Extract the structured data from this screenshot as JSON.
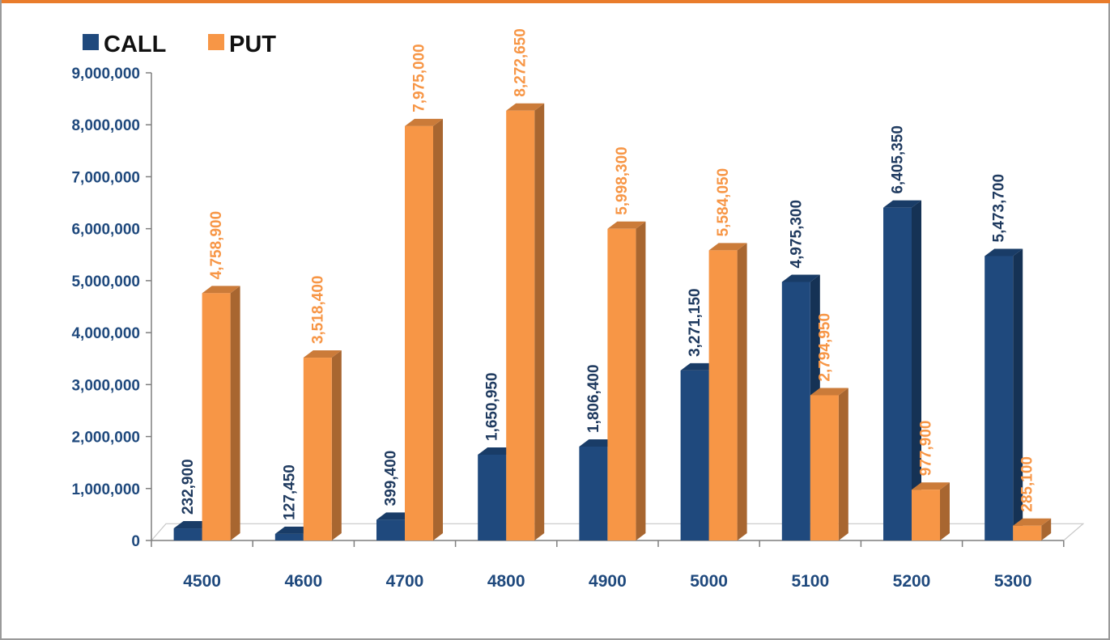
{
  "chart_data": {
    "type": "bar",
    "categories": [
      "4500",
      "4600",
      "4700",
      "4800",
      "4900",
      "5000",
      "5100",
      "5200",
      "5300"
    ],
    "series": [
      {
        "name": "CALL",
        "color": "#1f497d",
        "values": [
          232900,
          127450,
          399400,
          1650950,
          1806400,
          3271150,
          4975300,
          6405350,
          5473700
        ],
        "labels": [
          "232,900",
          "127,450",
          "399,400",
          "1,650,950",
          "1,806,400",
          "3,271,150",
          "4,975,300",
          "6,405,350",
          "5,473,700"
        ]
      },
      {
        "name": "PUT",
        "color": "#f79646",
        "values": [
          4758900,
          3518400,
          7975000,
          8272650,
          5998300,
          5584050,
          2794950,
          977900,
          285100
        ],
        "labels": [
          "4,758,900",
          "3,518,400",
          "7,975,000",
          "8,272,650",
          "5,998,300",
          "5,584,050",
          "2,794,950",
          "977,900",
          "285,100"
        ]
      }
    ],
    "ylim": [
      0,
      9000000
    ],
    "yticks": [
      0,
      1000000,
      2000000,
      3000000,
      4000000,
      5000000,
      6000000,
      7000000,
      8000000,
      9000000
    ],
    "ytick_labels": [
      "0",
      "1,000,000",
      "2,000,000",
      "3,000,000",
      "4,000,000",
      "5,000,000",
      "6,000,000",
      "7,000,000",
      "8,000,000",
      "9,000,000"
    ],
    "legend_position": "top-left",
    "grid": false,
    "title": "",
    "xlabel": "",
    "ylabel": ""
  }
}
